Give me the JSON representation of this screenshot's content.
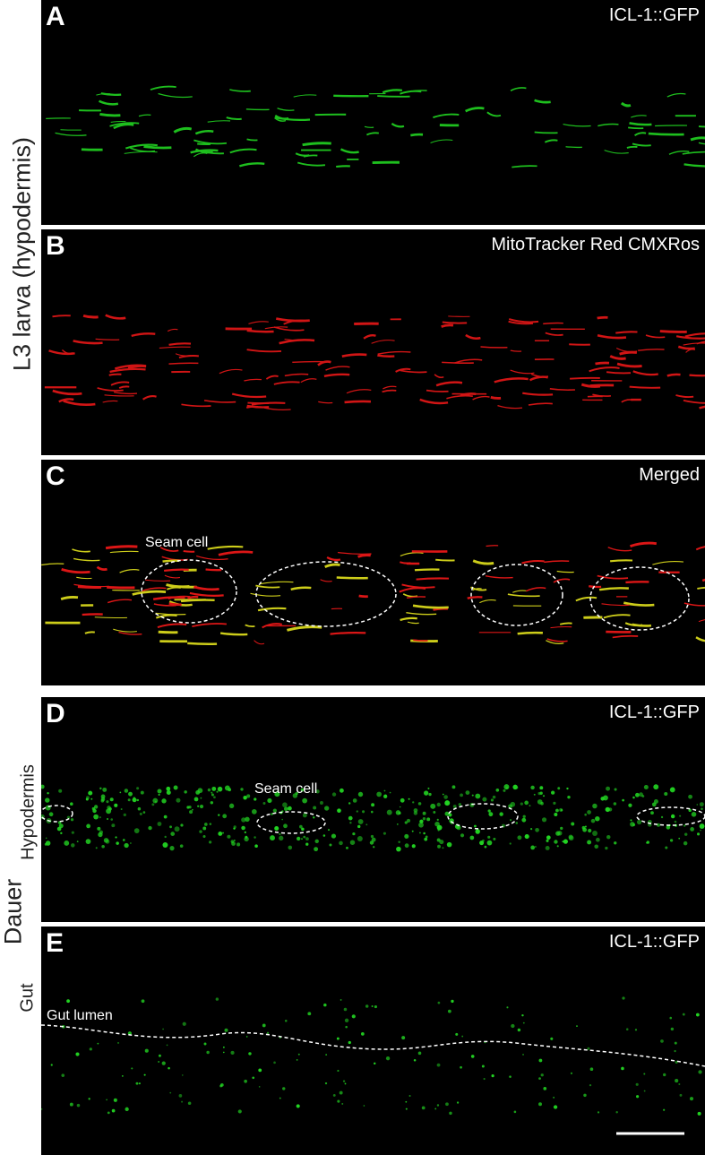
{
  "side_labels": {
    "l3": "L3 larva (hypodermis)",
    "dauer": "Dauer",
    "hypodermis": "Hypodermis",
    "gut": "Gut"
  },
  "panels": [
    {
      "letter": "A",
      "channel": "ICL-1::GFP",
      "color": "#22d422"
    },
    {
      "letter": "B",
      "channel": "MitoTracker Red CMXRos",
      "color": "#e81818"
    },
    {
      "letter": "C",
      "channel": "Merged",
      "color": "#d8d81c",
      "annotation": "Seam cell"
    },
    {
      "letter": "D",
      "channel": "ICL-1::GFP",
      "color": "#22d422",
      "annotation": "Seam cell"
    },
    {
      "letter": "E",
      "channel": "ICL-1::GFP",
      "color": "#22d422",
      "annotation": "Gut lumen"
    }
  ]
}
